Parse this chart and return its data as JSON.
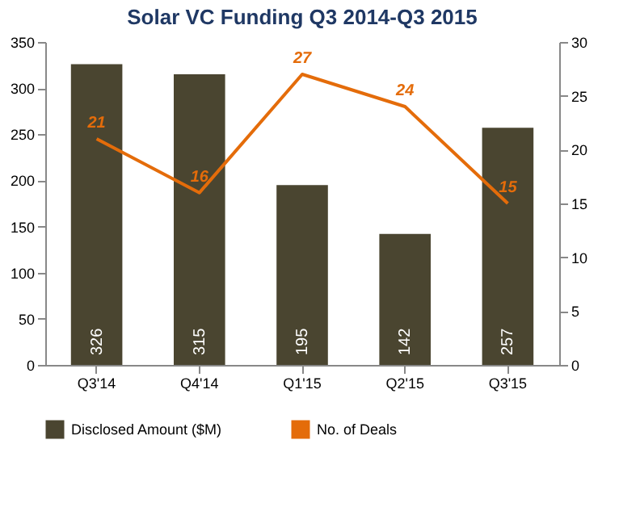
{
  "chart_data": {
    "type": "bar",
    "title": "Solar VC Funding Q3 2014-Q3 2015",
    "categories": [
      "Q3'14",
      "Q4'14",
      "Q1'15",
      "Q2'15",
      "Q3'15"
    ],
    "series": [
      {
        "name": "Disclosed Amount ($M)",
        "color": "#4a4530",
        "values": [
          326,
          315,
          195,
          142,
          257
        ]
      },
      {
        "name": "No. of Deals",
        "type": "line",
        "axis": "y2",
        "color": "#e46c0a",
        "values": [
          21,
          16,
          27,
          24,
          15
        ]
      }
    ],
    "ylim": [
      0,
      350
    ],
    "yticks": [
      0,
      50,
      100,
      150,
      200,
      250,
      300,
      350
    ],
    "y2lim": [
      0,
      30
    ],
    "y2ticks": [
      0,
      5,
      10,
      15,
      20,
      25,
      30
    ],
    "data_labels": true,
    "legend": "bottom",
    "grid": false
  }
}
